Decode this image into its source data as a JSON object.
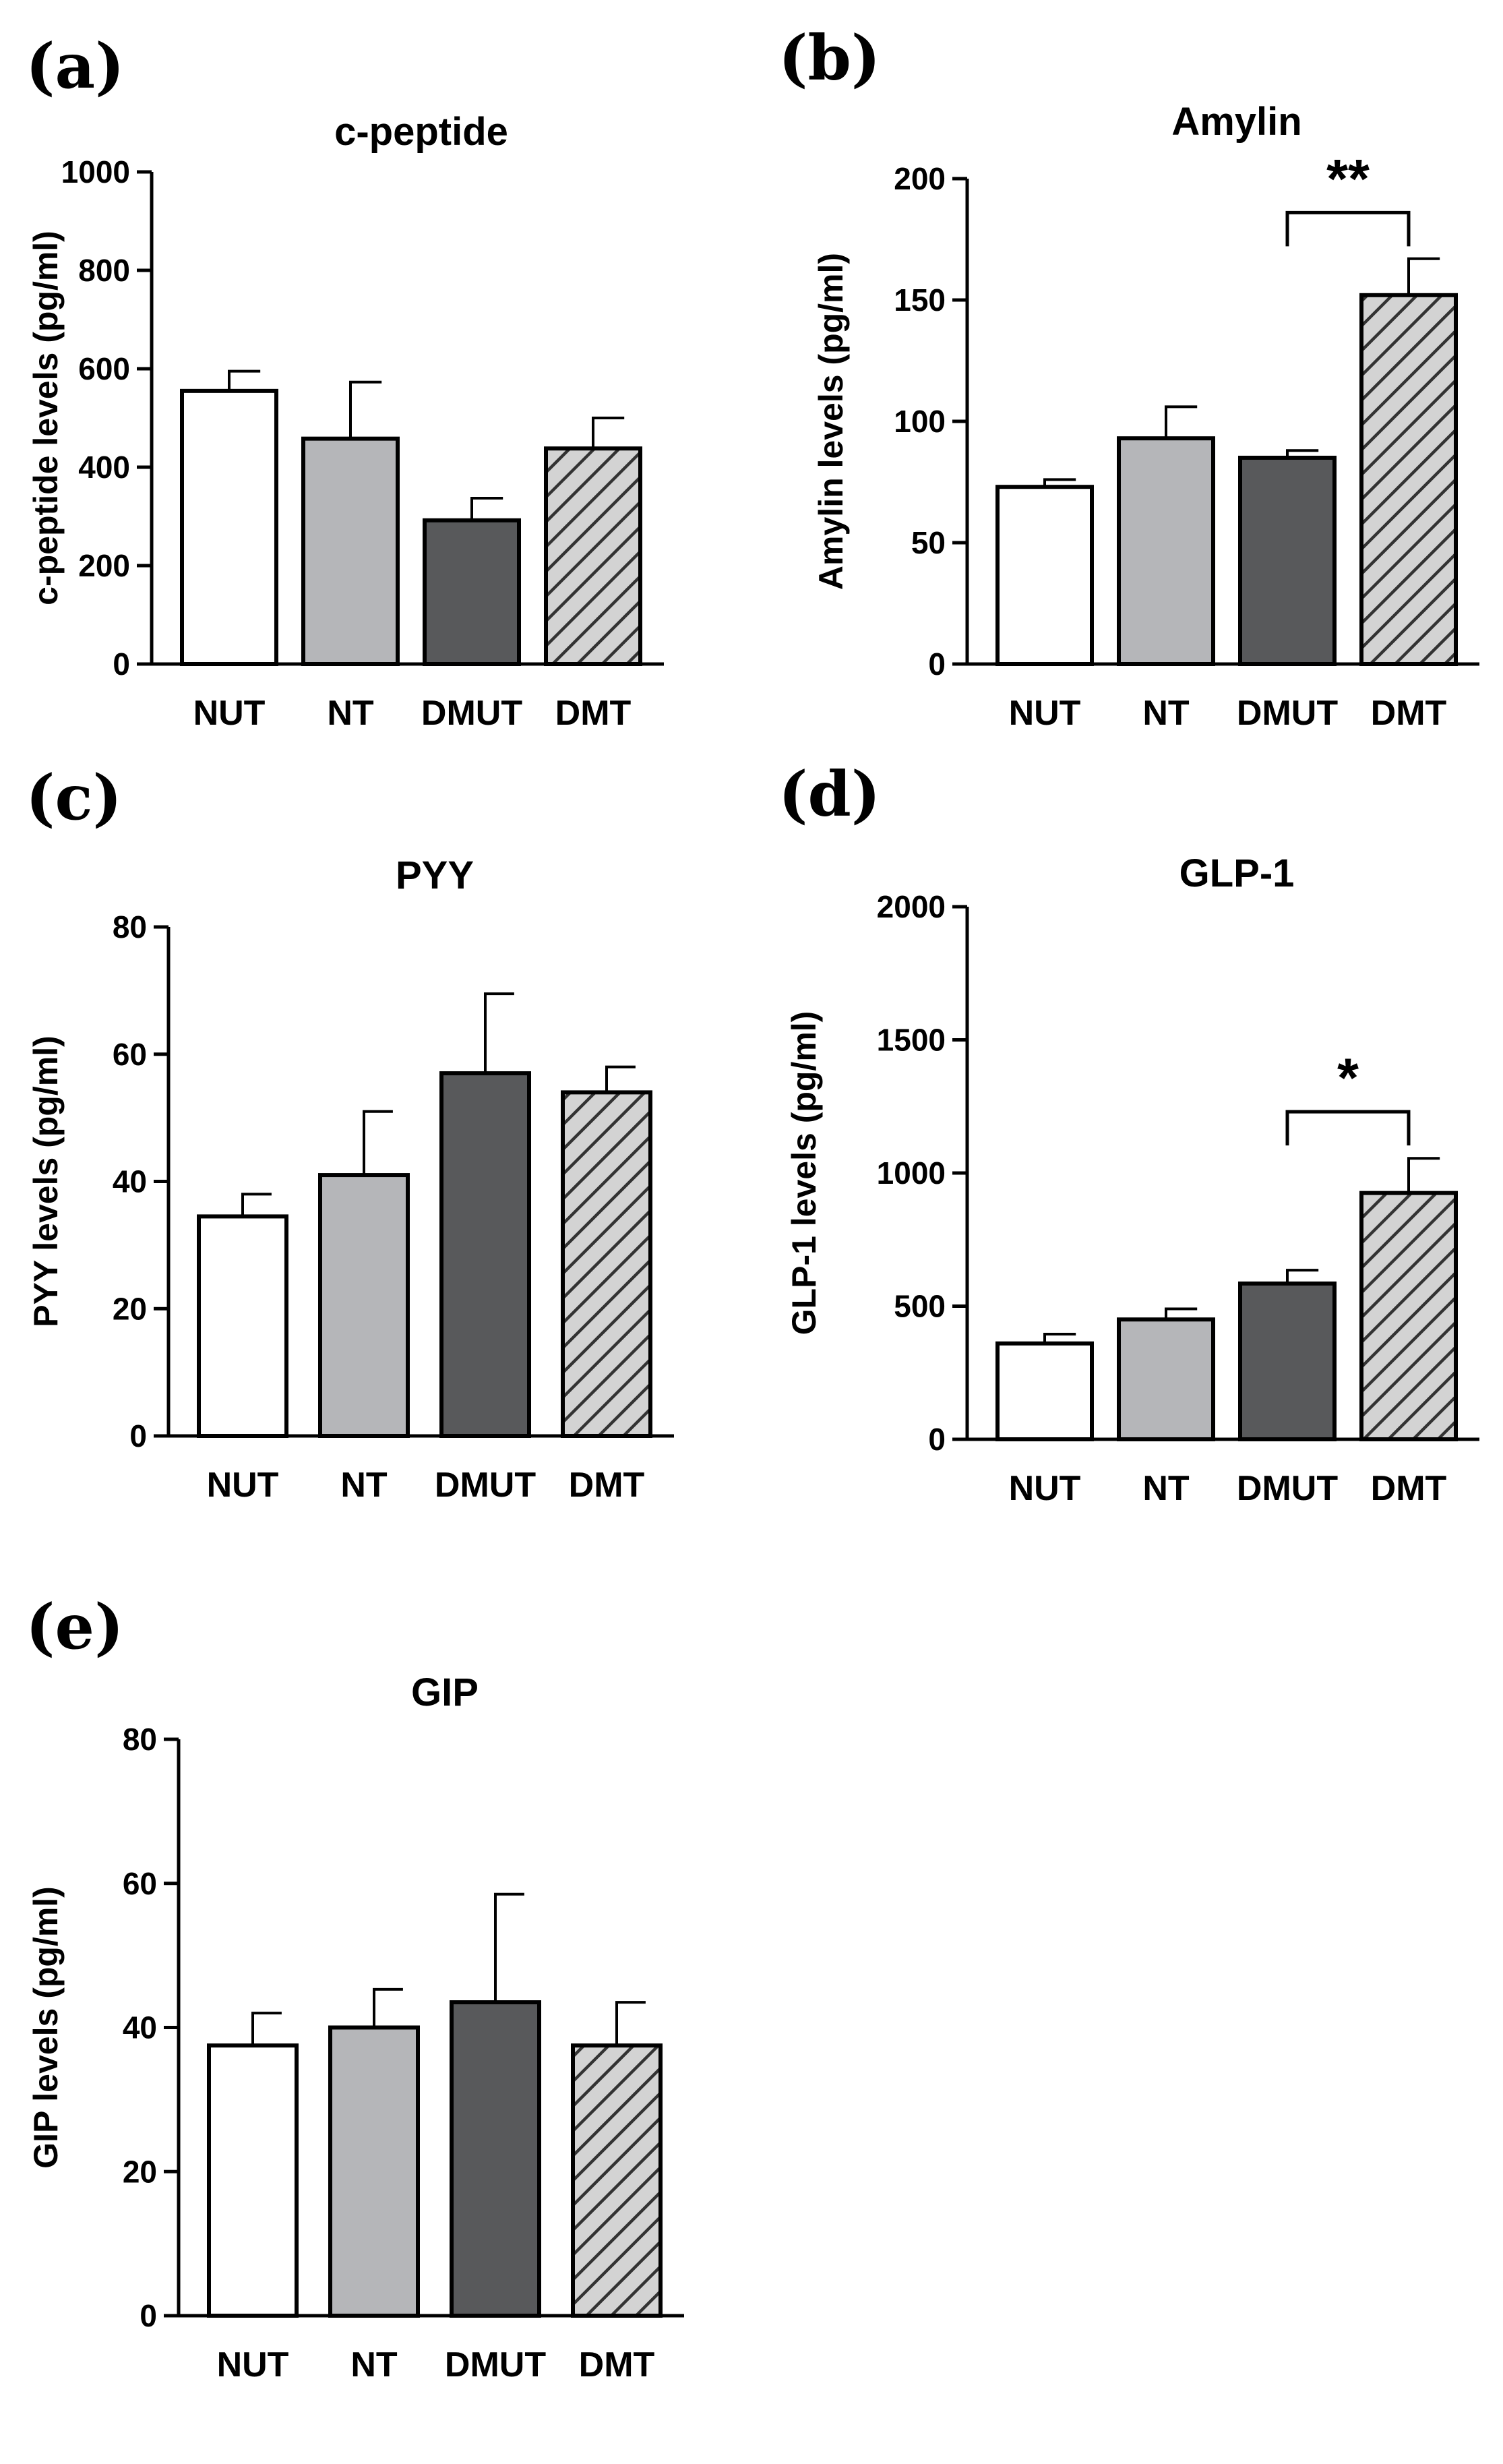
{
  "figure": {
    "description_panels": [
      "(a)",
      "(b)",
      "(c)",
      "(d)",
      "(e)"
    ]
  },
  "colors": {
    "NUT": "#ffffff",
    "NT": "#b5b6b9",
    "DMUT": "#58595b",
    "DMT_base": "#d3d3d3",
    "DMT_hatch": "#333333",
    "axis": "#000000"
  },
  "chart_data": [
    {
      "panel": "(a)",
      "type": "bar",
      "title": "c-peptide",
      "xlabel": "",
      "ylabel": "c-peptide levels (pg/ml)",
      "categories": [
        "NUT",
        "NT",
        "DMUT",
        "DMT"
      ],
      "values": [
        555,
        458,
        292,
        438
      ],
      "errors": [
        40,
        115,
        45,
        62
      ],
      "ylim": [
        0,
        1000
      ],
      "yticks": [
        0,
        200,
        400,
        600,
        800,
        1000
      ],
      "significance": []
    },
    {
      "panel": "(b)",
      "type": "bar",
      "title": "Amylin",
      "xlabel": "",
      "ylabel": "Amylin levels (pg/ml)",
      "categories": [
        "NUT",
        "NT",
        "DMUT",
        "DMT"
      ],
      "values": [
        73,
        93,
        85,
        152
      ],
      "errors": [
        3,
        13,
        3,
        15
      ],
      "ylim": [
        0,
        200
      ],
      "yticks": [
        0,
        50,
        100,
        150,
        200
      ],
      "significance": [
        {
          "from": "DMUT",
          "to": "DMT",
          "label": "**",
          "y": 186
        }
      ]
    },
    {
      "panel": "(c)",
      "type": "bar",
      "title": "PYY",
      "xlabel": "",
      "ylabel": "PYY levels (pg/ml)",
      "categories": [
        "NUT",
        "NT",
        "DMUT",
        "DMT"
      ],
      "values": [
        34.5,
        41,
        57,
        54
      ],
      "errors": [
        3.5,
        10,
        12.5,
        4
      ],
      "ylim": [
        0,
        80
      ],
      "yticks": [
        0,
        20,
        40,
        60,
        80
      ],
      "significance": []
    },
    {
      "panel": "(d)",
      "type": "bar",
      "title": "GLP-1",
      "xlabel": "",
      "ylabel": "GLP-1 levels (pg/ml)",
      "categories": [
        "NUT",
        "NT",
        "DMUT",
        "DMT"
      ],
      "values": [
        360,
        450,
        585,
        925
      ],
      "errors": [
        35,
        40,
        50,
        130
      ],
      "ylim": [
        0,
        2000
      ],
      "yticks": [
        0,
        500,
        1000,
        1500,
        2000
      ],
      "significance": [
        {
          "from": "DMUT",
          "to": "DMT",
          "label": "*",
          "y": 1230
        }
      ]
    },
    {
      "panel": "(e)",
      "type": "bar",
      "title": "GIP",
      "xlabel": "",
      "ylabel": "GIP levels (pg/ml)",
      "categories": [
        "NUT",
        "NT",
        "DMUT",
        "DMT"
      ],
      "values": [
        37.5,
        40,
        43.5,
        37.5
      ],
      "errors": [
        4.5,
        5.3,
        15,
        6
      ],
      "ylim": [
        0,
        80
      ],
      "yticks": [
        0,
        20,
        40,
        60,
        80
      ],
      "significance": []
    }
  ]
}
